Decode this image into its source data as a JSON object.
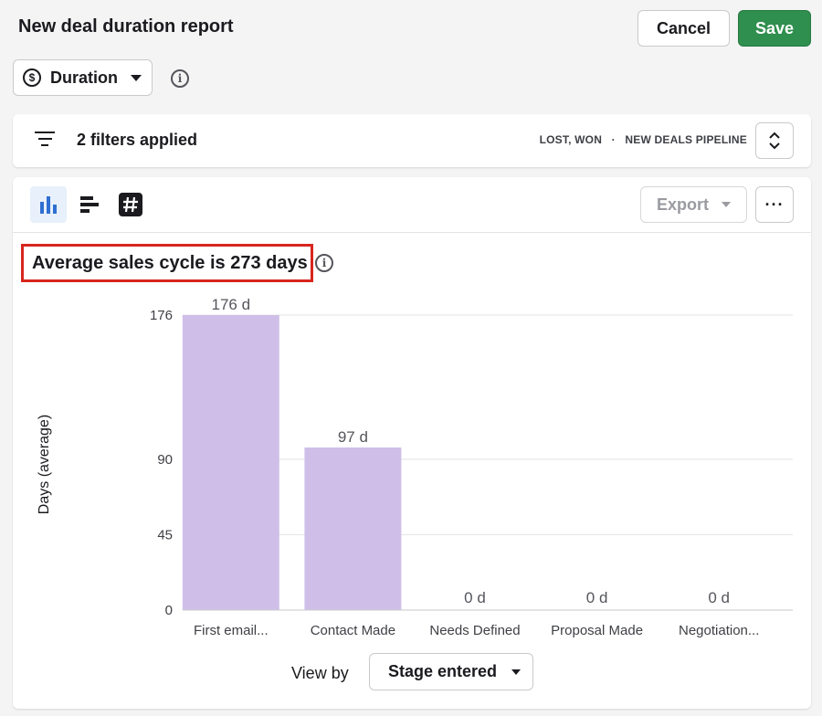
{
  "header": {
    "title": "New deal duration report",
    "cancel_label": "Cancel",
    "save_label": "Save",
    "save_color": "#2f8f4e"
  },
  "metric_selector": {
    "icon": "dollar-circle-icon",
    "label": "Duration",
    "info_icon": "info-icon"
  },
  "filters": {
    "icon": "filter-lines-icon",
    "label": "2 filters applied",
    "meta_statuses": "LOST, WON",
    "meta_separator": "·",
    "meta_pipeline": "NEW DEALS PIPELINE",
    "expand_icon": "chevron-up-down-icon"
  },
  "toolbar": {
    "view_icons": [
      "vertical-bar-chart-icon",
      "horizontal-bar-chart-icon",
      "number-summary-icon"
    ],
    "active_view": "vertical-bar-chart-icon",
    "export_label": "Export",
    "more_label": "···"
  },
  "summary": {
    "headline": "Average sales cycle is 273 days",
    "highlight_color": "#d7261e"
  },
  "chart_data": {
    "type": "bar",
    "categories": [
      "First email...",
      "Contact Made",
      "Needs Defined",
      "Proposal Made",
      "Negotiation..."
    ],
    "values": [
      176,
      97,
      0,
      0,
      0
    ],
    "data_labels": [
      "176 d",
      "97 d",
      "0 d",
      "0 d",
      "0 d"
    ],
    "ylabel": "Days (average)",
    "yticks": [
      0,
      45,
      90,
      176
    ],
    "ylim": [
      0,
      176
    ],
    "bar_color": "#cfbfe8",
    "grid": true
  },
  "view_by": {
    "label": "View by",
    "selected": "Stage entered"
  }
}
